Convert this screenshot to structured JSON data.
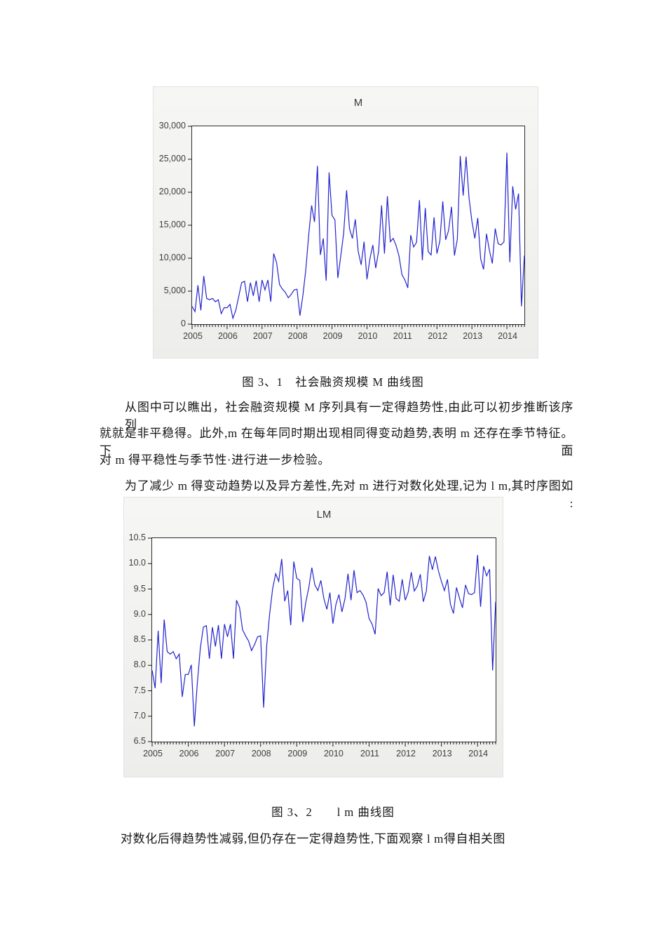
{
  "figure1": {
    "caption": "图 3、1　社会融资规模 M 曲线图"
  },
  "figure2": {
    "caption": "图 3、2　　l m 曲线图"
  },
  "paragraphs": {
    "p1_line1": "从图中可以瞧出，社会融资规模 M 序列具有一定得趋势性,由此可以初步推断该序列",
    "p1_line2": "就就是非平稳得。此外,m 在每年同时期出现相同得变动趋势,表明 m 还存在季节特征。下面",
    "p1_line3": "对 m 得平稳性与季节性·进行进一步检验。",
    "p2_line1": "为了减少 m 得变动趋势以及异方差性,先对 m 进行对数化处理,记为 l m,其时序图如下:",
    "p3_line1": "对数化后得趋势性减弱,但仍存在一定得趋势性,下面观察 l m得自相关图"
  },
  "chart_data": [
    {
      "type": "line",
      "title": "M",
      "x_frequency": "monthly",
      "x_start": "2005M01",
      "x_end": "2014M07",
      "x_tick_labels": [
        "2005",
        "2006",
        "2007",
        "2008",
        "2009",
        "2010",
        "2011",
        "2012",
        "2013",
        "2014"
      ],
      "ylim": [
        0,
        30000
      ],
      "y_tick_labels": [
        "30,000",
        "25,000",
        "20,000",
        "15,000",
        "10,000",
        "5,000",
        "0"
      ],
      "grid": false,
      "legend": "none",
      "line_color": "#2323cd",
      "values": [
        2700,
        1900,
        5900,
        2100,
        7300,
        3900,
        3700,
        3900,
        3400,
        3700,
        1600,
        2500,
        2500,
        3000,
        900,
        2100,
        4200,
        6300,
        6500,
        3400,
        6300,
        4300,
        6600,
        3400,
        6700,
        5200,
        6700,
        3400,
        10700,
        9300,
        6000,
        5300,
        4800,
        4000,
        4500,
        5200,
        5300,
        1300,
        4300,
        8200,
        13500,
        18000,
        15500,
        24000,
        10500,
        13000,
        6600,
        23000,
        16500,
        15800,
        7000,
        10300,
        13800,
        20300,
        14500,
        13000,
        15900,
        11000,
        9000,
        12500,
        6800,
        9900,
        12000,
        8500,
        11100,
        18000,
        10700,
        19400,
        12500,
        13000,
        11900,
        10300,
        7500,
        6700,
        5500,
        13500,
        11700,
        12400,
        18800,
        9700,
        17600,
        11000,
        10500,
        16200,
        10700,
        12600,
        18600,
        12800,
        14200,
        17800,
        10400,
        12900,
        25500,
        19500,
        25400,
        19200,
        15600,
        13000,
        16100,
        9900,
        8300,
        13700,
        11200,
        9200,
        14500,
        12200,
        12000,
        12500,
        26000,
        9400,
        20900,
        17400,
        19800,
        2700,
        10400
      ]
    },
    {
      "type": "line",
      "title": "LM",
      "x_frequency": "monthly",
      "x_start": "2005M01",
      "x_end": "2014M07",
      "x_tick_labels": [
        "2005",
        "2006",
        "2007",
        "2008",
        "2009",
        "2010",
        "2011",
        "2012",
        "2013",
        "2014"
      ],
      "ylim": [
        6.5,
        10.5
      ],
      "y_tick_labels": [
        "10.5",
        "10.0",
        "9.5",
        "9.0",
        "8.5",
        "8.0",
        "7.5",
        "7.0",
        "6.5"
      ],
      "grid": false,
      "legend": "none",
      "line_color": "#2323cd",
      "values": [
        7.9,
        7.55,
        8.68,
        7.65,
        8.9,
        8.27,
        8.22,
        8.27,
        8.13,
        8.22,
        7.38,
        7.82,
        7.82,
        8.01,
        6.8,
        7.65,
        8.34,
        8.75,
        8.78,
        8.13,
        8.75,
        8.37,
        8.79,
        8.13,
        8.81,
        8.56,
        8.81,
        8.13,
        9.28,
        9.14,
        8.7,
        8.58,
        8.48,
        8.29,
        8.41,
        8.56,
        8.58,
        7.17,
        8.37,
        9.01,
        9.51,
        9.8,
        9.65,
        10.09,
        9.26,
        9.47,
        8.79,
        10.04,
        9.71,
        9.67,
        8.85,
        9.24,
        9.53,
        9.92,
        9.58,
        9.47,
        9.67,
        9.31,
        9.1,
        9.43,
        8.82,
        9.2,
        9.39,
        9.05,
        9.31,
        9.8,
        9.28,
        9.87,
        9.43,
        9.47,
        9.38,
        9.24,
        8.92,
        8.81,
        8.61,
        9.51,
        9.37,
        9.43,
        9.84,
        9.18,
        9.78,
        9.31,
        9.26,
        9.69,
        9.28,
        9.44,
        9.83,
        9.46,
        9.56,
        9.79,
        9.25,
        9.46,
        10.15,
        9.88,
        10.14,
        9.86,
        9.65,
        9.47,
        9.69,
        9.2,
        9.02,
        9.53,
        9.32,
        9.13,
        9.58,
        9.41,
        9.39,
        9.43,
        10.17,
        9.15,
        9.95,
        9.76,
        9.89,
        7.9,
        9.25
      ]
    }
  ]
}
